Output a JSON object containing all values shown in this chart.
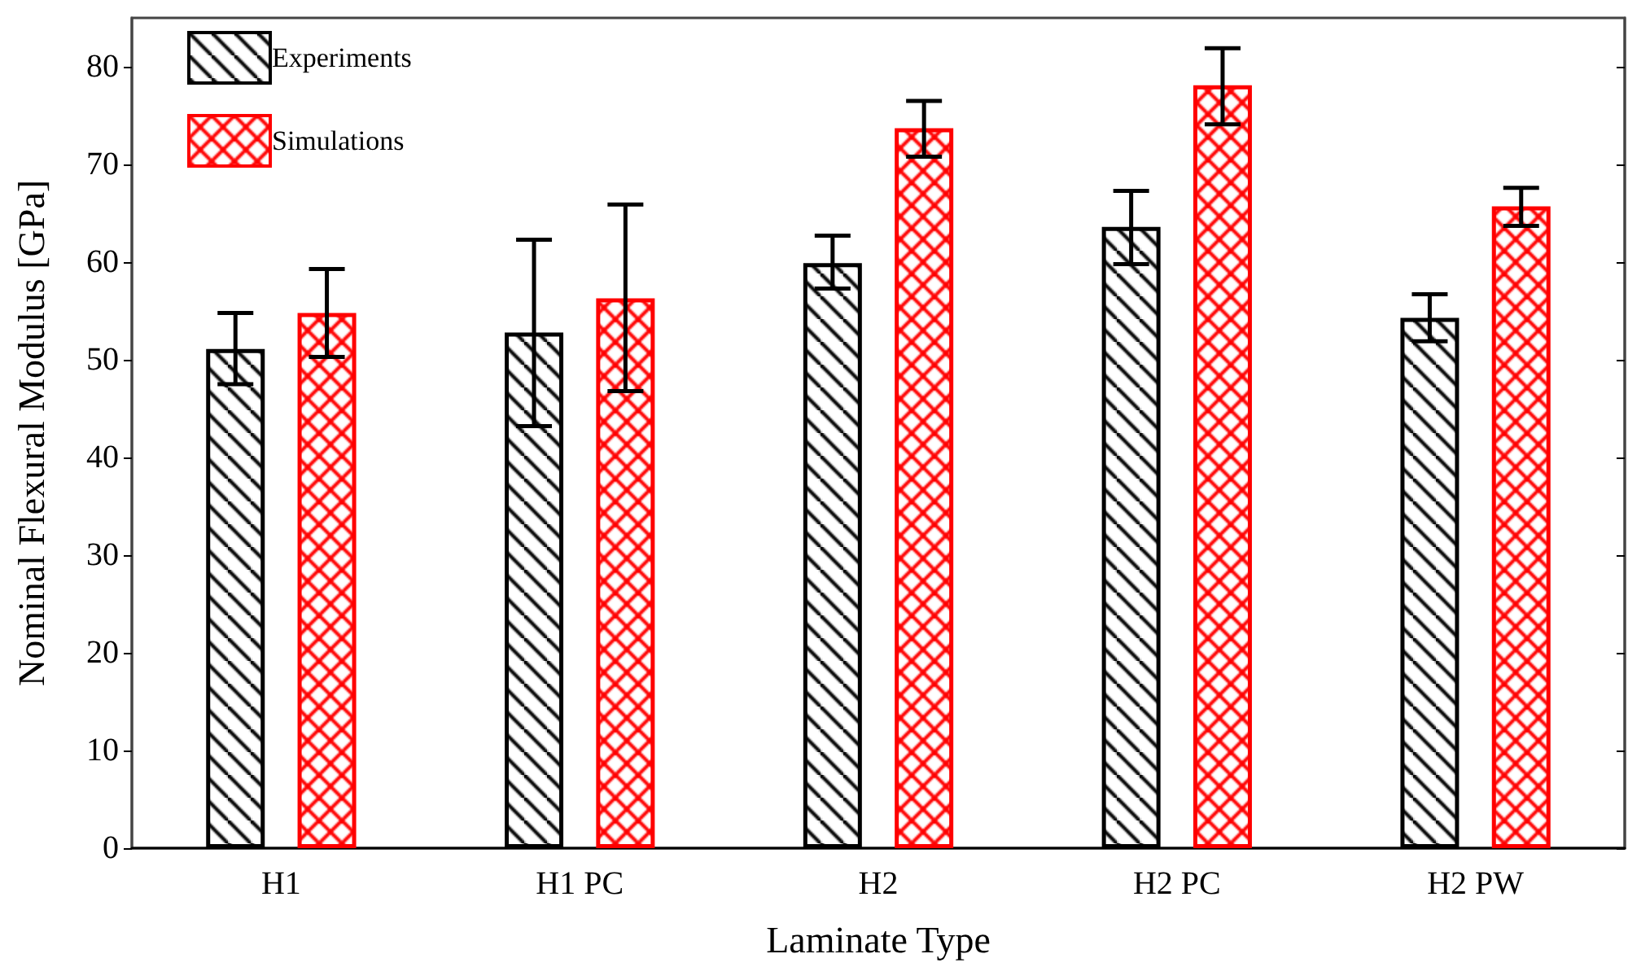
{
  "chart_data": {
    "type": "bar",
    "xlabel": "Laminate Type",
    "ylabel": "Nominal Flexural Modulus [GPa]",
    "categories": [
      "H1",
      "H1 PC",
      "H2",
      "H2 PC",
      "H2 PW"
    ],
    "series": [
      {
        "name": "Experiments",
        "color": "#000000",
        "values": [
          51.1,
          52.8,
          59.9,
          63.6,
          54.3
        ],
        "errors": [
          [
            47.5,
            54.8
          ],
          [
            43.2,
            62.3
          ],
          [
            57.3,
            62.7
          ],
          [
            59.8,
            67.3
          ],
          [
            51.9,
            56.7
          ]
        ]
      },
      {
        "name": "Simulations",
        "color": "#ff0000",
        "values": [
          54.8,
          56.3,
          73.7,
          78.1,
          65.7
        ],
        "errors": [
          [
            50.3,
            59.3
          ],
          [
            46.8,
            65.9
          ],
          [
            70.8,
            76.5
          ],
          [
            74.1,
            81.9
          ],
          [
            63.7,
            67.6
          ]
        ]
      }
    ],
    "ylim": [
      0,
      85
    ],
    "yticks": [
      0,
      10,
      20,
      30,
      40,
      50,
      60,
      70,
      80
    ],
    "grid": false,
    "legend": "top left"
  }
}
